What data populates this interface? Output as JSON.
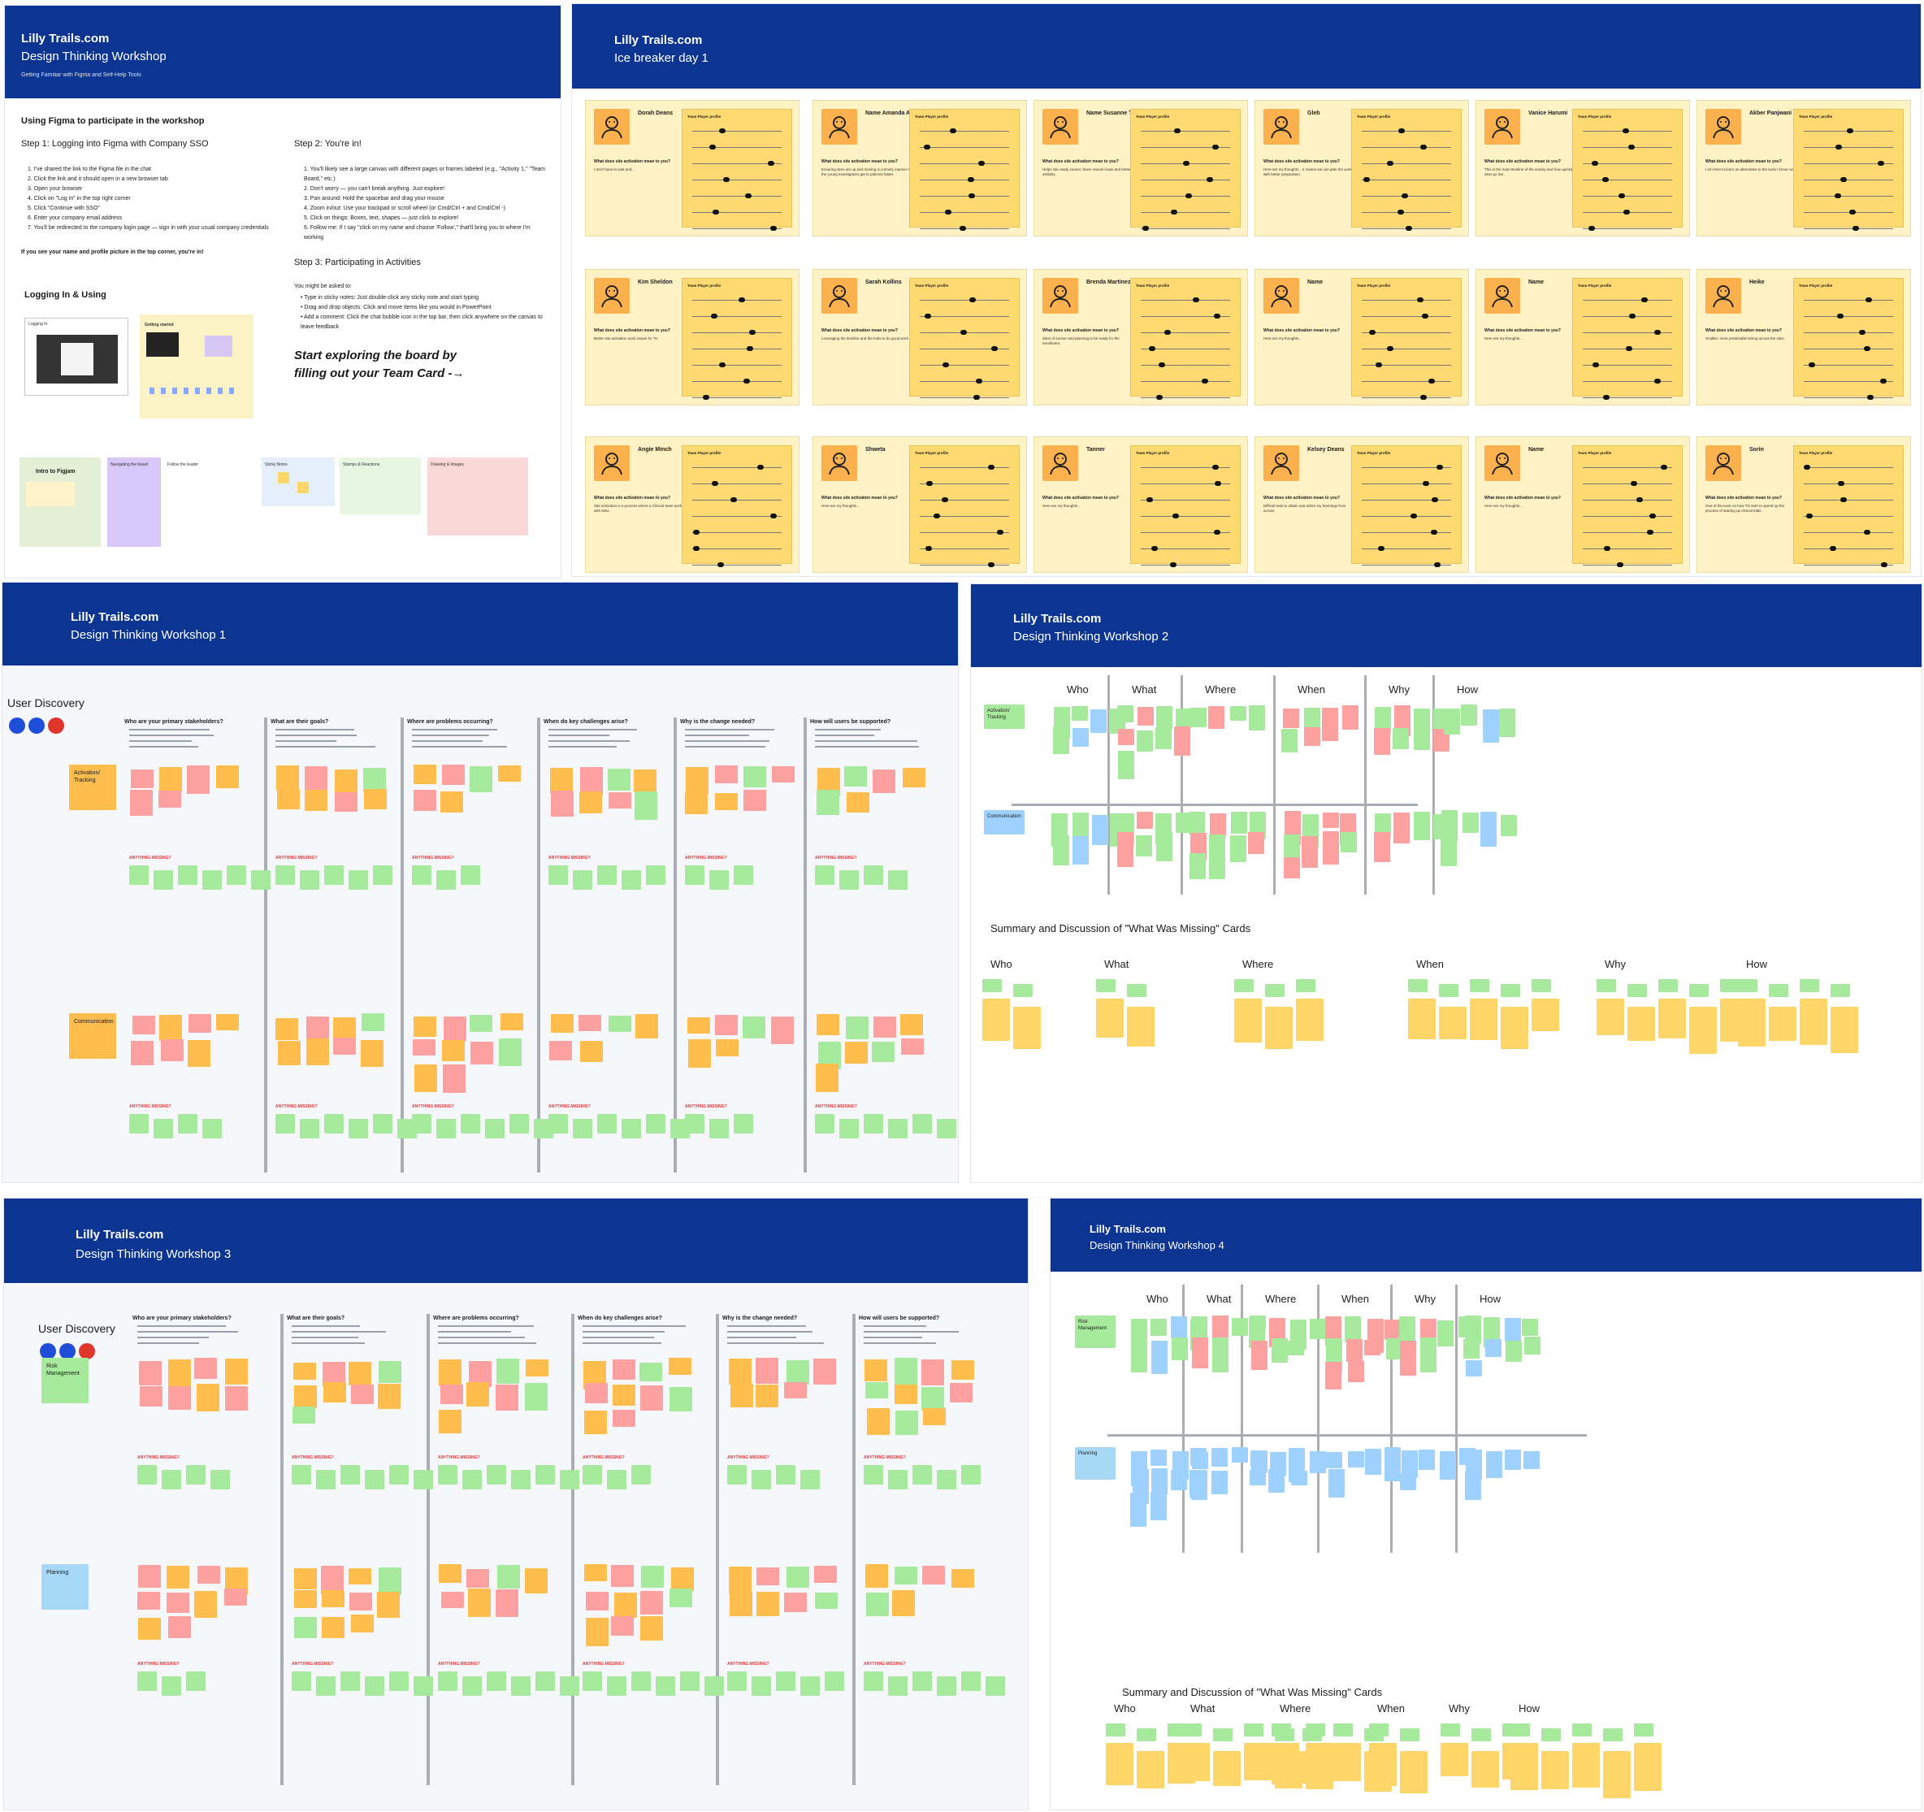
{
  "brand": "Lilly Trails.com",
  "frame_intro": {
    "title": "Design Thinking Workshop",
    "subtitle": "Getting Familiar with Figma and Self-Help Tools",
    "using_heading": "Using Figma to participate in the workshop",
    "step1_heading": "Step 1: Logging into Figma with Company SSO",
    "step1_items": [
      "1. I've shared the link to the Figma file in the chat",
      "2. Click the link and it should open in a new browser tab",
      "3. Open your browser",
      "4. Click on \"Log in\" in the top right corner",
      "5. Click \"Continue with SSO\"",
      "6. Enter your company email address",
      "7. You'll be redirected to the company login page — sign in with your usual company credentials"
    ],
    "step1_note": "If you see your name and profile picture in the top corner, you're in!",
    "step2_heading": "Step 2: You're in!",
    "step2_items": [
      "1. You'll likely see a large canvas with different pages or frames labeled (e.g., \"Activity 1,\" \"Team Board,\" etc.)",
      "2. Don't worry — you can't break anything. Just explore!",
      "3. Pan around: Hold the spacebar and drag your mouse",
      "4. Zoom in/out: Use your trackpad or scroll wheel (or Cmd/Ctrl + and Cmd/Ctrl -)",
      "5. Click on things: Boxes, text, shapes — just click to explore!",
      "6. Follow me: If I say \"click on my name and choose 'Follow',\" that'll bring you to where I'm working"
    ],
    "step3_heading": "Step 3: Participating in Activities",
    "step3_intro": "You might be asked to:",
    "step3_items": [
      "• Type in sticky notes: Just double-click any sticky note and start typing",
      "• Drag and drop objects: Click and move items like you would in PowerPoint",
      "• Add a comment: Click the chat bubble icon in the top bar, then click anywhere on the canvas to leave feedback"
    ],
    "cta": "Start exploring the board by filling out your Team Card -→",
    "logging_heading": "Logging In & Using",
    "logging_label": "Logging In",
    "getting_started_label": "Getting started",
    "thumbs": [
      "Intro to Figjam",
      "Navigating the board",
      "Follow the leader",
      "Sticky Notes",
      "Stamps & Reactions",
      "Drawing & Images"
    ]
  },
  "frame_icebreaker": {
    "title": "Ice breaker day 1",
    "question": "What does site activation mean to you?",
    "profile_label": "Team Player profile",
    "cards": [
      {
        "name": "Dorah Deans",
        "answer": "I don't have to wait and..."
      },
      {
        "name": "Name Amanda A.",
        "answer": "Ensuring sites are up and running in a timely manner so the young investigators get to patients faster."
      },
      {
        "name": "Name Susanne Tani",
        "answer": "Helps site ready sooner, fewer rework loops and better visibility."
      },
      {
        "name": "Gleb",
        "answer": "Here are my thoughts... it means we can plan the work with better preparation."
      },
      {
        "name": "Vanice Harumi",
        "answer": "This is the main timeline of the activity and how quickly sites go live."
      },
      {
        "name": "Akber Panjwani",
        "answer": "I am here to learn an alternative to the tools I know now."
      },
      {
        "name": "Kim Sheldon",
        "answer": "Better site activation work issues for TA."
      },
      {
        "name": "Sarah Kollins",
        "answer": "Leveraging the timeline and the tools to do good work."
      },
      {
        "name": "Brenda Martinez",
        "answer": "Sites of sooner and planning to be ready for the enrollment."
      },
      {
        "name": "Name",
        "answer": "Here are my thoughts..."
      },
      {
        "name": "Name",
        "answer": "Here are my thoughts..."
      },
      {
        "name": "Heike",
        "answer": "Smaller, more predictable timing across the sites."
      },
      {
        "name": "Angie Minch",
        "answer": "Site activation is a process where a Clinical team works with sites."
      },
      {
        "name": "Shweta",
        "answer": "Here are my thoughts..."
      },
      {
        "name": "Tanner",
        "answer": "Here are my thoughts..."
      },
      {
        "name": "Kelsey Deans",
        "answer": "Difficult task to obtain and utilize my learnings from across."
      },
      {
        "name": "Name",
        "answer": "Here are my thoughts..."
      },
      {
        "name": "Sorin",
        "answer": "One of the tools on how TO start to speed up the process of starting up clinical trials."
      }
    ]
  },
  "frame_ws1": {
    "title": "Design Thinking Workshop 1",
    "section": "User Discovery",
    "questions": [
      "Who are your primary stakeholders?",
      "What are their goals?",
      "Where are problems occurring?",
      "When do key challenges arise?",
      "Why is the change needed?",
      "How will users be supported?"
    ],
    "rows": [
      "Activation/ Tracking",
      "Communication"
    ],
    "missing_label": "ANYTHING MISSING?"
  },
  "frame_ws2": {
    "title": "Design Thinking Workshop 2",
    "columns": [
      "Who",
      "What",
      "Where",
      "When",
      "Why",
      "How"
    ],
    "rows": [
      "Activation/ Tracking",
      "Communication"
    ],
    "summary_heading": "Summary and Discussion of \"What Was Missing\" Cards",
    "summary_columns": [
      "Who",
      "What",
      "Where",
      "When",
      "Why",
      "How"
    ]
  },
  "frame_ws3": {
    "title": "Design Thinking Workshop 3",
    "section": "User Discovery",
    "questions": [
      "Who are your primary stakeholders?",
      "What are their goals?",
      "Where are problems occurring?",
      "When do key challenges arise?",
      "Why is the change needed?",
      "How will users be supported?"
    ],
    "rows": [
      "Risk Management",
      "Planning"
    ],
    "missing_label": "ANYTHING MISSING?"
  },
  "frame_ws4": {
    "title": "Design Thinking Workshop 4",
    "columns": [
      "Who",
      "What",
      "Where",
      "When",
      "Why",
      "How"
    ],
    "rows": [
      "Risk Management",
      "Planning"
    ],
    "summary_heading": "Summary and Discussion of \"What Was Missing\" Cards",
    "summary_columns": [
      "Who",
      "What",
      "Where",
      "When",
      "Why",
      "How"
    ]
  },
  "colors": {
    "header": "#0c3591",
    "yellow": "#fdd568",
    "orange": "#ffbd4d",
    "green": "#a8ea9d",
    "pink": "#fda0a0",
    "blue": "#9fd1ff"
  }
}
